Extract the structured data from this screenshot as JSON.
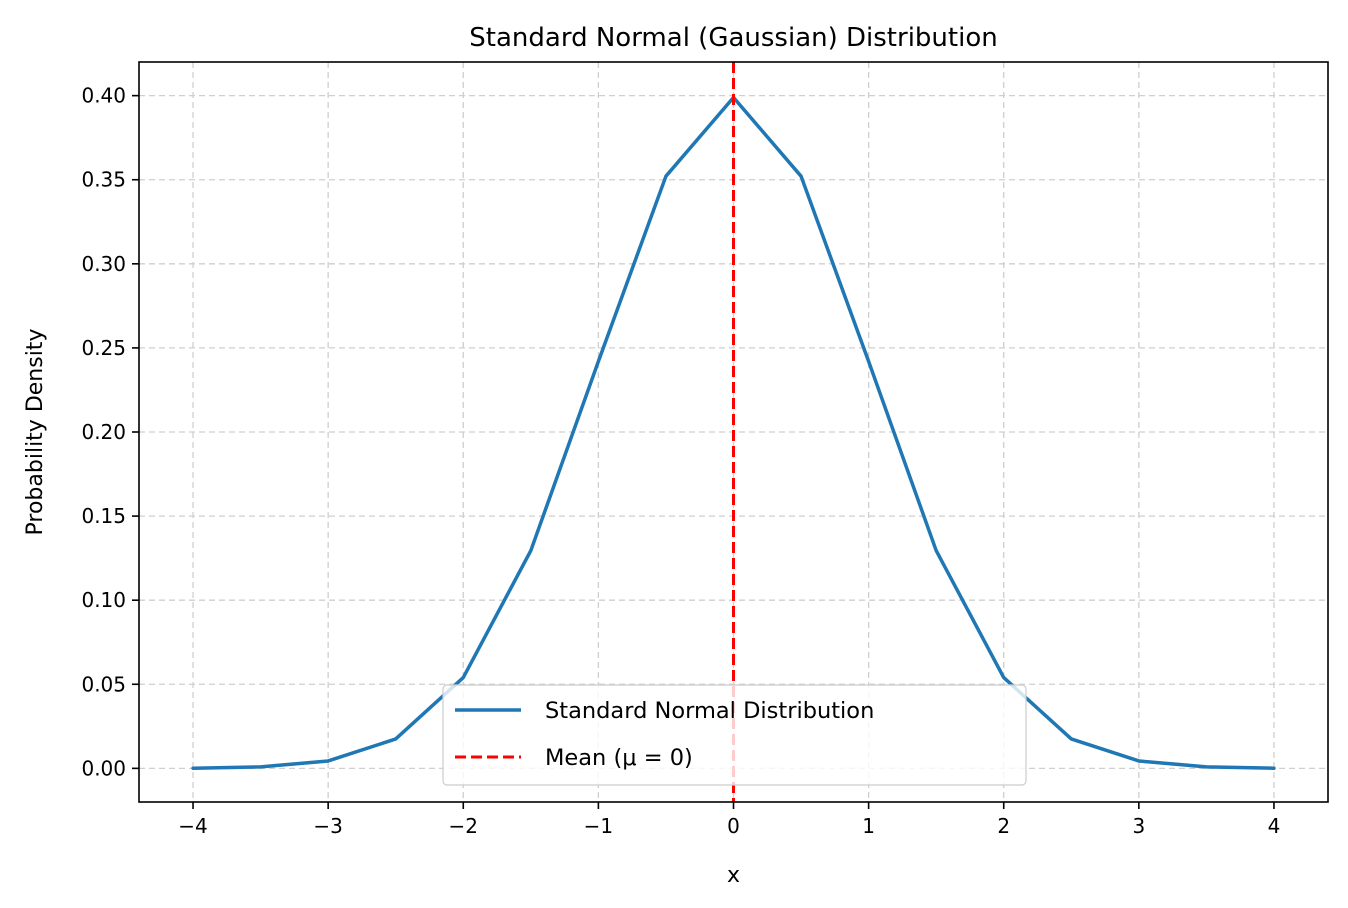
{
  "chart_data": {
    "type": "line",
    "title": "Standard Normal (Gaussian) Distribution",
    "xlabel": "x",
    "ylabel": "Probability Density",
    "xlim": [
      -4.4,
      4.4
    ],
    "ylim": [
      -0.02,
      0.42
    ],
    "x_ticks": [
      -4,
      -3,
      -2,
      -1,
      0,
      1,
      2,
      3,
      4
    ],
    "x_tick_labels": [
      "−4",
      "−3",
      "−2",
      "−1",
      "0",
      "1",
      "2",
      "3",
      "4"
    ],
    "y_ticks": [
      0.0,
      0.05,
      0.1,
      0.15,
      0.2,
      0.25,
      0.3,
      0.35,
      0.4
    ],
    "y_tick_labels": [
      "0.00",
      "0.05",
      "0.10",
      "0.15",
      "0.20",
      "0.25",
      "0.30",
      "0.35",
      "0.40"
    ],
    "grid": true,
    "legend_position": "bottom-center",
    "series": [
      {
        "name": "Standard Normal Distribution",
        "color": "#1f77b4",
        "style": "solid",
        "x": [
          -4.0,
          -3.5,
          -3.0,
          -2.5,
          -2.0,
          -1.5,
          -1.0,
          -0.5,
          0.0,
          0.5,
          1.0,
          1.5,
          2.0,
          2.5,
          3.0,
          3.5,
          4.0
        ],
        "y": [
          0.0001,
          0.0009,
          0.0044,
          0.0175,
          0.054,
          0.1295,
          0.242,
          0.3521,
          0.3989,
          0.3521,
          0.242,
          0.1295,
          0.054,
          0.0175,
          0.0044,
          0.0009,
          0.0001
        ]
      },
      {
        "name": "Mean (μ = 0)",
        "color": "#ff0000",
        "style": "dashed",
        "x": 0
      }
    ]
  }
}
